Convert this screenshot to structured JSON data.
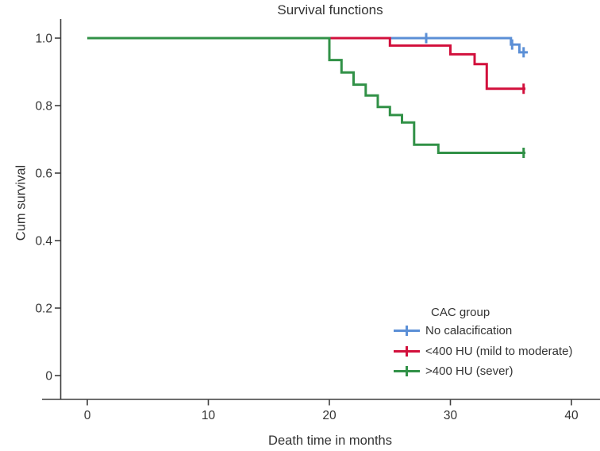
{
  "title": "Survival functions",
  "axes": {
    "x": {
      "label": "Death time in months",
      "ticks": [
        0,
        10,
        20,
        30,
        40
      ]
    },
    "y": {
      "label": "Cum survival",
      "ticks": [
        0,
        0.2,
        0.4,
        0.6,
        0.8,
        1.0
      ],
      "tick_labels": [
        "0",
        "0.2",
        "0.4",
        "0.6",
        "0.8",
        "1.0"
      ]
    }
  },
  "legend": {
    "title": "CAC group",
    "items": [
      {
        "label": "No calacification",
        "color": "#5b8fd6"
      },
      {
        "label": "<400 HU (mild to moderate)",
        "color": "#d2103c"
      },
      {
        "label": ">400 HU (sever)",
        "color": "#319147"
      }
    ]
  },
  "colors": {
    "axis": "#3f3f3f",
    "text": "#333333",
    "background": "#ffffff",
    "blue_series": "#5b8fd6",
    "red_series": "#d2103c",
    "green_series": "#319147"
  },
  "chart_data": {
    "type": "line",
    "subtype": "kaplan-meier-step",
    "title": "Survival functions",
    "xlabel": "Death time in months",
    "ylabel": "Cum survival",
    "xlim": [
      -3.7,
      42.4
    ],
    "ylim": [
      0,
      1.06
    ],
    "grid": false,
    "legend_position": "lower-right-inside",
    "series": [
      {
        "name": "No calacification",
        "color": "#5b8fd6",
        "steps": [
          [
            0,
            1.0
          ],
          [
            35,
            1.0
          ],
          [
            35,
            0.981
          ],
          [
            35.7,
            0.981
          ],
          [
            35.7,
            0.958
          ],
          [
            36.4,
            0.958
          ]
        ],
        "censored": [
          [
            28,
            1.0
          ],
          [
            35.1,
            0.981
          ],
          [
            36.05,
            0.958
          ]
        ]
      },
      {
        "name": "<400 HU (mild to moderate)",
        "color": "#d2103c",
        "steps": [
          [
            0,
            1.0
          ],
          [
            25,
            1.0
          ],
          [
            25,
            0.978
          ],
          [
            30,
            0.978
          ],
          [
            30,
            0.952
          ],
          [
            32,
            0.952
          ],
          [
            32,
            0.923
          ],
          [
            33,
            0.923
          ],
          [
            33,
            0.85
          ],
          [
            36.2,
            0.85
          ]
        ],
        "censored": [
          [
            36.05,
            0.85
          ]
        ]
      },
      {
        "name": ">400 HU (sever)",
        "color": "#319147",
        "steps": [
          [
            0,
            1.0
          ],
          [
            20,
            1.0
          ],
          [
            20,
            0.935
          ],
          [
            21,
            0.935
          ],
          [
            21,
            0.898
          ],
          [
            22,
            0.898
          ],
          [
            22,
            0.862
          ],
          [
            23,
            0.862
          ],
          [
            23,
            0.83
          ],
          [
            24,
            0.83
          ],
          [
            24,
            0.796
          ],
          [
            25,
            0.796
          ],
          [
            25,
            0.772
          ],
          [
            26,
            0.772
          ],
          [
            26,
            0.75
          ],
          [
            27,
            0.75
          ],
          [
            27,
            0.684
          ],
          [
            29,
            0.684
          ],
          [
            29,
            0.66
          ],
          [
            36.2,
            0.66
          ]
        ],
        "censored": [
          [
            36.05,
            0.66
          ]
        ]
      }
    ]
  }
}
